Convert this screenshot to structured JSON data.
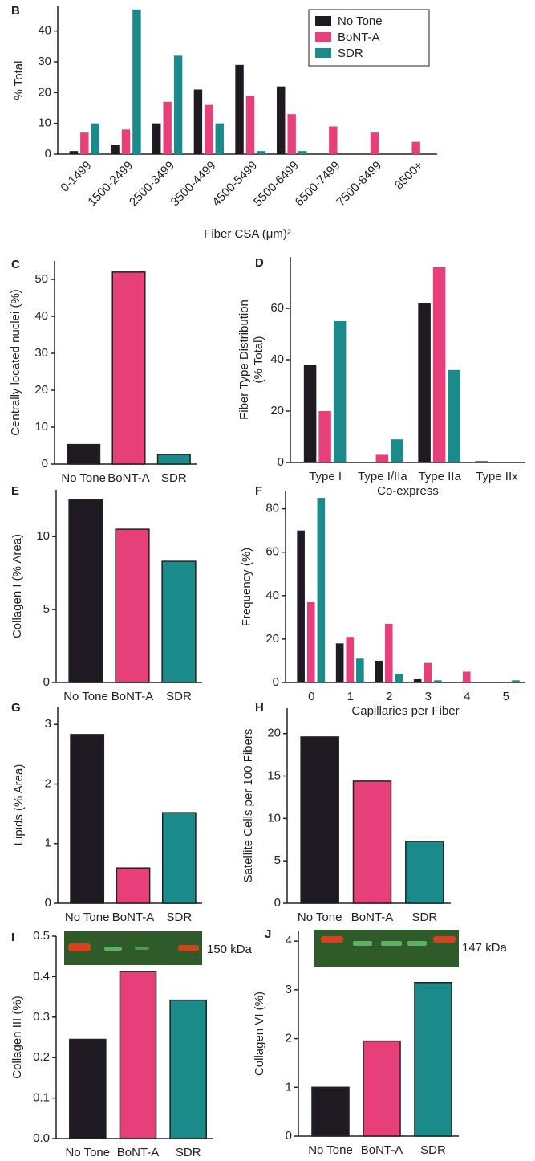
{
  "chart_data": [
    {
      "type": "grouped-bar",
      "label": "B",
      "ylabel": [
        "% Total"
      ],
      "xlabel": "Fiber CSA (μm)²",
      "categories": [
        "0-1499",
        "1500-2499",
        "2500-3499",
        "3500-4499",
        "4500-5499",
        "5500-6499",
        "6500-7499",
        "7500-8499",
        "8500+"
      ],
      "series": [
        {
          "name": "No Tone",
          "color": "#1f1a22",
          "values": [
            1,
            3,
            10,
            21,
            29,
            22,
            0,
            0,
            0
          ]
        },
        {
          "name": "BoNT-A",
          "color": "#e63f7a",
          "values": [
            7,
            8,
            17,
            16,
            19,
            13,
            9,
            7,
            4
          ]
        },
        {
          "name": "SDR",
          "color": "#1a8a8a",
          "values": [
            10,
            47,
            32,
            10,
            1,
            1,
            0,
            0,
            0
          ]
        }
      ],
      "ylim": [
        0,
        48
      ],
      "yticks": [
        0,
        10,
        20,
        30,
        40
      ],
      "legend": "top-right"
    },
    {
      "type": "bar",
      "label": "C",
      "ylabel": [
        "Centrally located nuclei (%)"
      ],
      "categories": [
        "No Tone",
        "BoNT-A",
        "SDR"
      ],
      "values": [
        5.3,
        52,
        2.6
      ],
      "colors": [
        "#1f1a22",
        "#e63f7a",
        "#1a8a8a"
      ],
      "ylim": [
        0,
        55
      ],
      "yticks": [
        0,
        10,
        20,
        30,
        40,
        50
      ]
    },
    {
      "type": "grouped-bar",
      "label": "D",
      "ylabel": [
        "Fiber Type Distribution",
        "(% Total)"
      ],
      "xlabel": "Co-express",
      "categories": [
        "Type I",
        "Type I/IIa",
        "Type IIa",
        "Type IIx"
      ],
      "series": [
        {
          "color": "#1f1a22",
          "values": [
            38,
            0,
            62,
            0.5
          ]
        },
        {
          "color": "#e63f7a",
          "values": [
            20,
            3,
            76,
            0
          ]
        },
        {
          "color": "#1a8a8a",
          "values": [
            55,
            9,
            36,
            0
          ]
        }
      ],
      "ylim": [
        0,
        80
      ],
      "yticks": [
        0,
        20,
        40,
        60
      ]
    },
    {
      "type": "bar",
      "label": "E",
      "ylabel": [
        "Collagen I (% Area)"
      ],
      "categories": [
        "No Tone",
        "BoNT-A",
        "SDR"
      ],
      "values": [
        12.5,
        10.5,
        8.3
      ],
      "colors": [
        "#1f1a22",
        "#e63f7a",
        "#1a8a8a"
      ],
      "ylim": [
        0,
        13.2
      ],
      "yticks": [
        0,
        5,
        10
      ]
    },
    {
      "type": "grouped-bar",
      "label": "F",
      "ylabel": [
        "Frequency (%)"
      ],
      "xlabel": "Capillaries per Fiber",
      "categories": [
        "0",
        "1",
        "2",
        "3",
        "4",
        "5"
      ],
      "series": [
        {
          "color": "#1f1a22",
          "values": [
            70,
            18,
            10,
            1.5,
            0,
            0
          ]
        },
        {
          "color": "#e63f7a",
          "values": [
            37,
            21,
            27,
            9,
            5,
            0
          ]
        },
        {
          "color": "#1a8a8a",
          "values": [
            85,
            11,
            4,
            1,
            0,
            1
          ]
        }
      ],
      "ylim": [
        0,
        88
      ],
      "yticks": [
        0,
        20,
        40,
        60,
        80
      ]
    },
    {
      "type": "bar",
      "label": "G",
      "ylabel": [
        "Lipids (% Area)"
      ],
      "categories": [
        "No Tone",
        "BoNT-A",
        "SDR"
      ],
      "values": [
        2.83,
        0.59,
        1.52
      ],
      "colors": [
        "#1f1a22",
        "#e63f7a",
        "#1a8a8a"
      ],
      "ylim": [
        0,
        3.3
      ],
      "yticks": [
        0,
        1,
        2,
        3
      ]
    },
    {
      "type": "bar",
      "label": "H",
      "ylabel": [
        "Satellite Cells per 100 Fibers"
      ],
      "categories": [
        "No Tone",
        "BoNT-A",
        "SDR"
      ],
      "values": [
        19.6,
        14.4,
        7.3
      ],
      "colors": [
        "#1f1a22",
        "#e63f7a",
        "#1a8a8a"
      ],
      "ylim": [
        0,
        23
      ],
      "yticks": [
        0,
        5,
        10,
        15,
        20
      ]
    },
    {
      "type": "bar",
      "label": "I",
      "ylabel": [
        "Collagen III (%)"
      ],
      "annotation": "150 kDa",
      "categories": [
        "No Tone",
        "BoNT-A",
        "SDR"
      ],
      "values": [
        0.245,
        0.413,
        0.342
      ],
      "colors": [
        "#1f1a22",
        "#e63f7a",
        "#1a8a8a"
      ],
      "ylim": [
        0,
        0.5
      ],
      "yticks": [
        {
          "value": 0,
          "label": "0.0"
        },
        0.1,
        0.2,
        0.3,
        0.4,
        0.5
      ]
    },
    {
      "type": "bar",
      "label": "J",
      "ylabel": [
        "Collagen VI (%)"
      ],
      "annotation": "147 kDa",
      "categories": [
        "No Tone",
        "BoNT-A",
        "SDR"
      ],
      "values": [
        1.0,
        1.95,
        3.15
      ],
      "colors": [
        "#1f1a22",
        "#e63f7a",
        "#1a8a8a"
      ],
      "ylim": [
        0,
        4.2
      ],
      "yticks": [
        0,
        1,
        2,
        3,
        4
      ]
    }
  ]
}
